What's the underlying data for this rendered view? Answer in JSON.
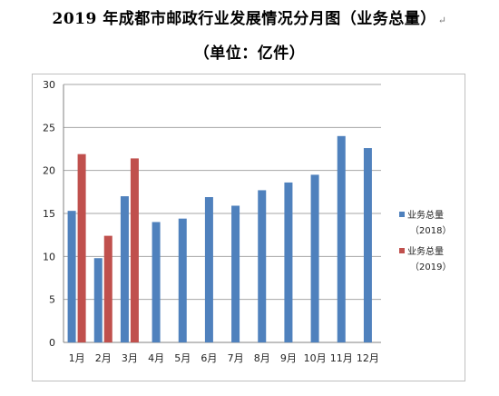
{
  "title": "2019 年成都市邮政行业发展情况分月图（业务总量）",
  "subtitle": "（单位：亿件）",
  "chart_data": {
    "type": "bar",
    "categories": [
      "1月",
      "2月",
      "3月",
      "4月",
      "5月",
      "6月",
      "7月",
      "8月",
      "9月",
      "10月",
      "11月",
      "12月"
    ],
    "series": [
      {
        "name": "业务总量（2018）",
        "label_top": "业务总量",
        "label_bottom": "（2018）",
        "color": "#4f81bd",
        "values": [
          15.3,
          9.8,
          17.0,
          14.0,
          14.4,
          16.9,
          15.9,
          17.7,
          18.6,
          19.5,
          24.0,
          22.6
        ]
      },
      {
        "name": "业务总量（2019）",
        "label_top": "业务总量",
        "label_bottom": "（2019）",
        "color": "#c0504d",
        "values": [
          21.9,
          12.4,
          21.4,
          null,
          null,
          null,
          null,
          null,
          null,
          null,
          null,
          null
        ]
      }
    ],
    "yticks": [
      "0",
      "5",
      "10",
      "15",
      "20",
      "25",
      "30"
    ],
    "ylim": [
      0,
      30
    ],
    "grid": true,
    "legend": "right"
  },
  "caption": "……"
}
